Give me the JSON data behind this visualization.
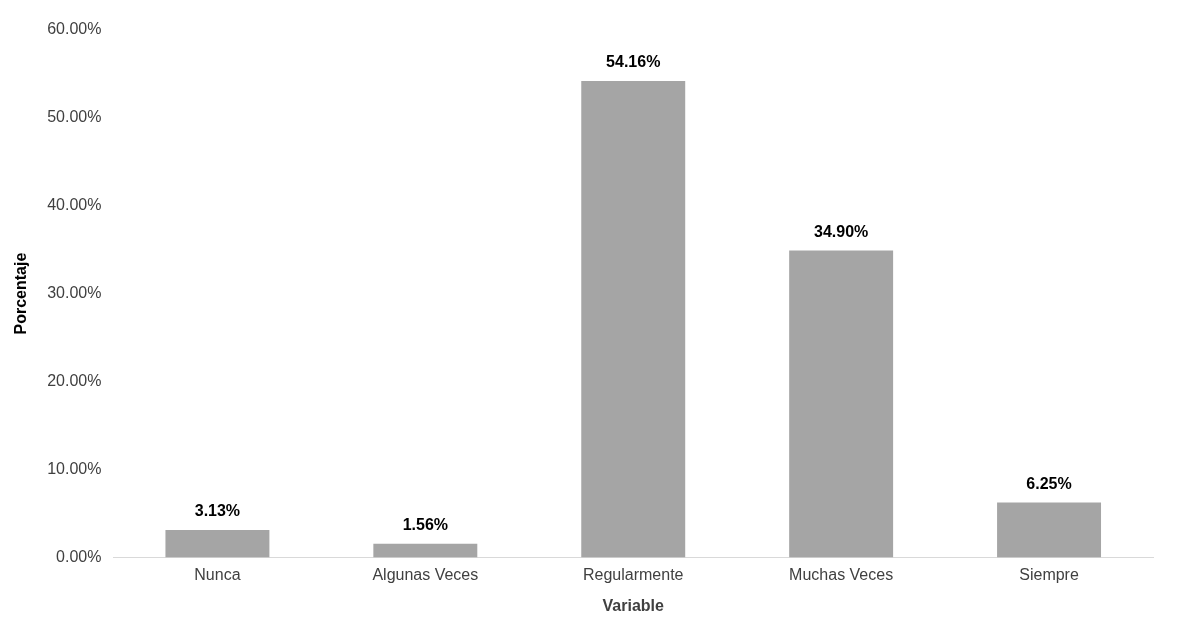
{
  "chart_data": {
    "type": "bar",
    "xlabel": "Variable",
    "ylabel": "Porcentaje",
    "categories": [
      "Nunca",
      "Algunas Veces",
      "Regularmente",
      "Muchas Veces",
      "Siempre"
    ],
    "values": [
      3.13,
      1.56,
      54.16,
      34.9,
      6.25
    ],
    "value_labels": [
      "3.13%",
      "1.56%",
      "54.16%",
      "34.90%",
      "6.25%"
    ],
    "color": "#a5a5a5",
    "ylim": [
      0,
      60
    ],
    "yticks": [
      {
        "value": 0,
        "label": "0.00%"
      },
      {
        "value": 10,
        "label": "10.00%"
      },
      {
        "value": 20,
        "label": "20.00%"
      },
      {
        "value": 30,
        "label": "30.00%"
      },
      {
        "value": 40,
        "label": "40.00%"
      },
      {
        "value": 50,
        "label": "50.00%"
      },
      {
        "value": 60,
        "label": "60.00%"
      }
    ],
    "grid": false,
    "legend": false
  }
}
